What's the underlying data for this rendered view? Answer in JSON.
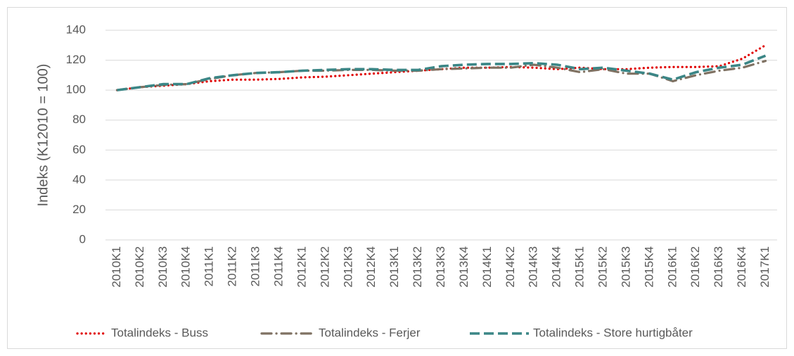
{
  "chart_data": {
    "type": "line",
    "y_label": "Indeks (K12010 = 100)",
    "categories": [
      "2010K1",
      "2010K2",
      "2010K3",
      "2010K4",
      "2011K1",
      "2011K2",
      "2011K3",
      "2011K4",
      "2012K1",
      "2012K2",
      "2012K3",
      "2012K4",
      "2013K1",
      "2013K2",
      "2013K3",
      "2013K4",
      "2014K1",
      "2014K2",
      "2014K3",
      "2014K4",
      "2015K1",
      "2015K2",
      "2015K3",
      "2015K4",
      "2016K1",
      "2016K2",
      "2016K3",
      "2016K4",
      "2017K1"
    ],
    "series": [
      {
        "name": "Totalindeks - Buss",
        "color": "#e00000",
        "values": [
          100,
          102,
          103,
          104,
          106,
          107,
          107,
          107.5,
          108.5,
          109,
          110,
          111,
          112,
          113,
          114,
          115,
          115,
          115.5,
          115,
          114,
          115,
          114,
          114,
          115,
          115.5,
          115.5,
          116,
          121,
          130
        ]
      },
      {
        "name": "Totalindeks - Ferjer",
        "color": "#7f7162",
        "values": [
          100,
          102,
          103.5,
          104,
          107.5,
          110,
          111.5,
          112,
          113,
          113,
          113.5,
          113.5,
          113,
          113,
          114,
          114.5,
          115,
          115,
          117,
          115,
          112,
          114,
          111,
          111,
          106,
          110,
          113,
          115,
          119.5
        ]
      },
      {
        "name": "Totalindeks - Store hurtigbåter",
        "color": "#3b8686",
        "values": [
          100,
          102,
          104,
          104,
          108,
          110,
          111.5,
          112,
          113,
          113.5,
          114,
          114,
          113.5,
          113.5,
          116,
          117,
          117.5,
          117.5,
          118,
          117,
          114,
          115,
          113,
          111,
          107,
          112,
          115,
          117,
          123
        ]
      }
    ],
    "ylim": [
      0,
      140
    ],
    "yticks": [
      0,
      20,
      40,
      60,
      80,
      100,
      120,
      140
    ],
    "grid": true,
    "legend": "bottom"
  }
}
